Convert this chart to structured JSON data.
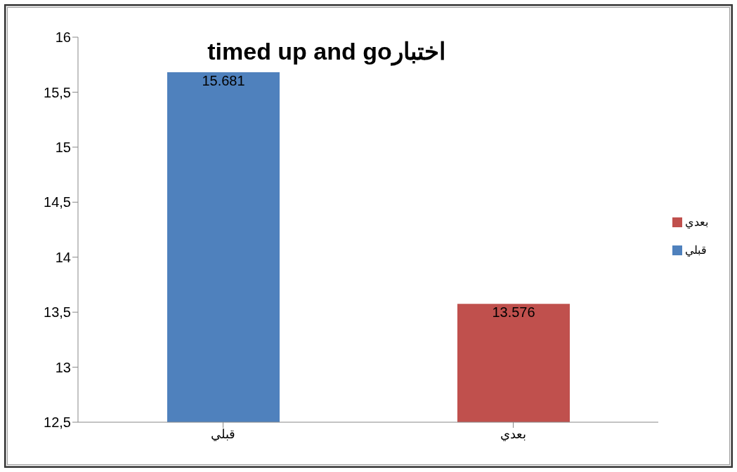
{
  "chart_data": {
    "type": "bar",
    "title": "timed up and goاختبار",
    "categories": [
      "قبلي",
      "بعدي"
    ],
    "series": [
      {
        "name": "قبلي",
        "color": "#4f81bd",
        "values": [
          15.681,
          null
        ]
      },
      {
        "name": "بعدي",
        "color": "#c0504d",
        "values": [
          null,
          13.576
        ]
      }
    ],
    "ylim": [
      12.5,
      16
    ],
    "yticks": [
      {
        "value": 12.5,
        "label": "12,5"
      },
      {
        "value": 13,
        "label": "13"
      },
      {
        "value": 13.5,
        "label": "13,5"
      },
      {
        "value": 14,
        "label": "14"
      },
      {
        "value": 14.5,
        "label": "14,5"
      },
      {
        "value": 15,
        "label": "15"
      },
      {
        "value": 15.5,
        "label": "15,5"
      },
      {
        "value": 16,
        "label": "16"
      }
    ],
    "data_labels": true,
    "grid": false,
    "legend": "right"
  }
}
